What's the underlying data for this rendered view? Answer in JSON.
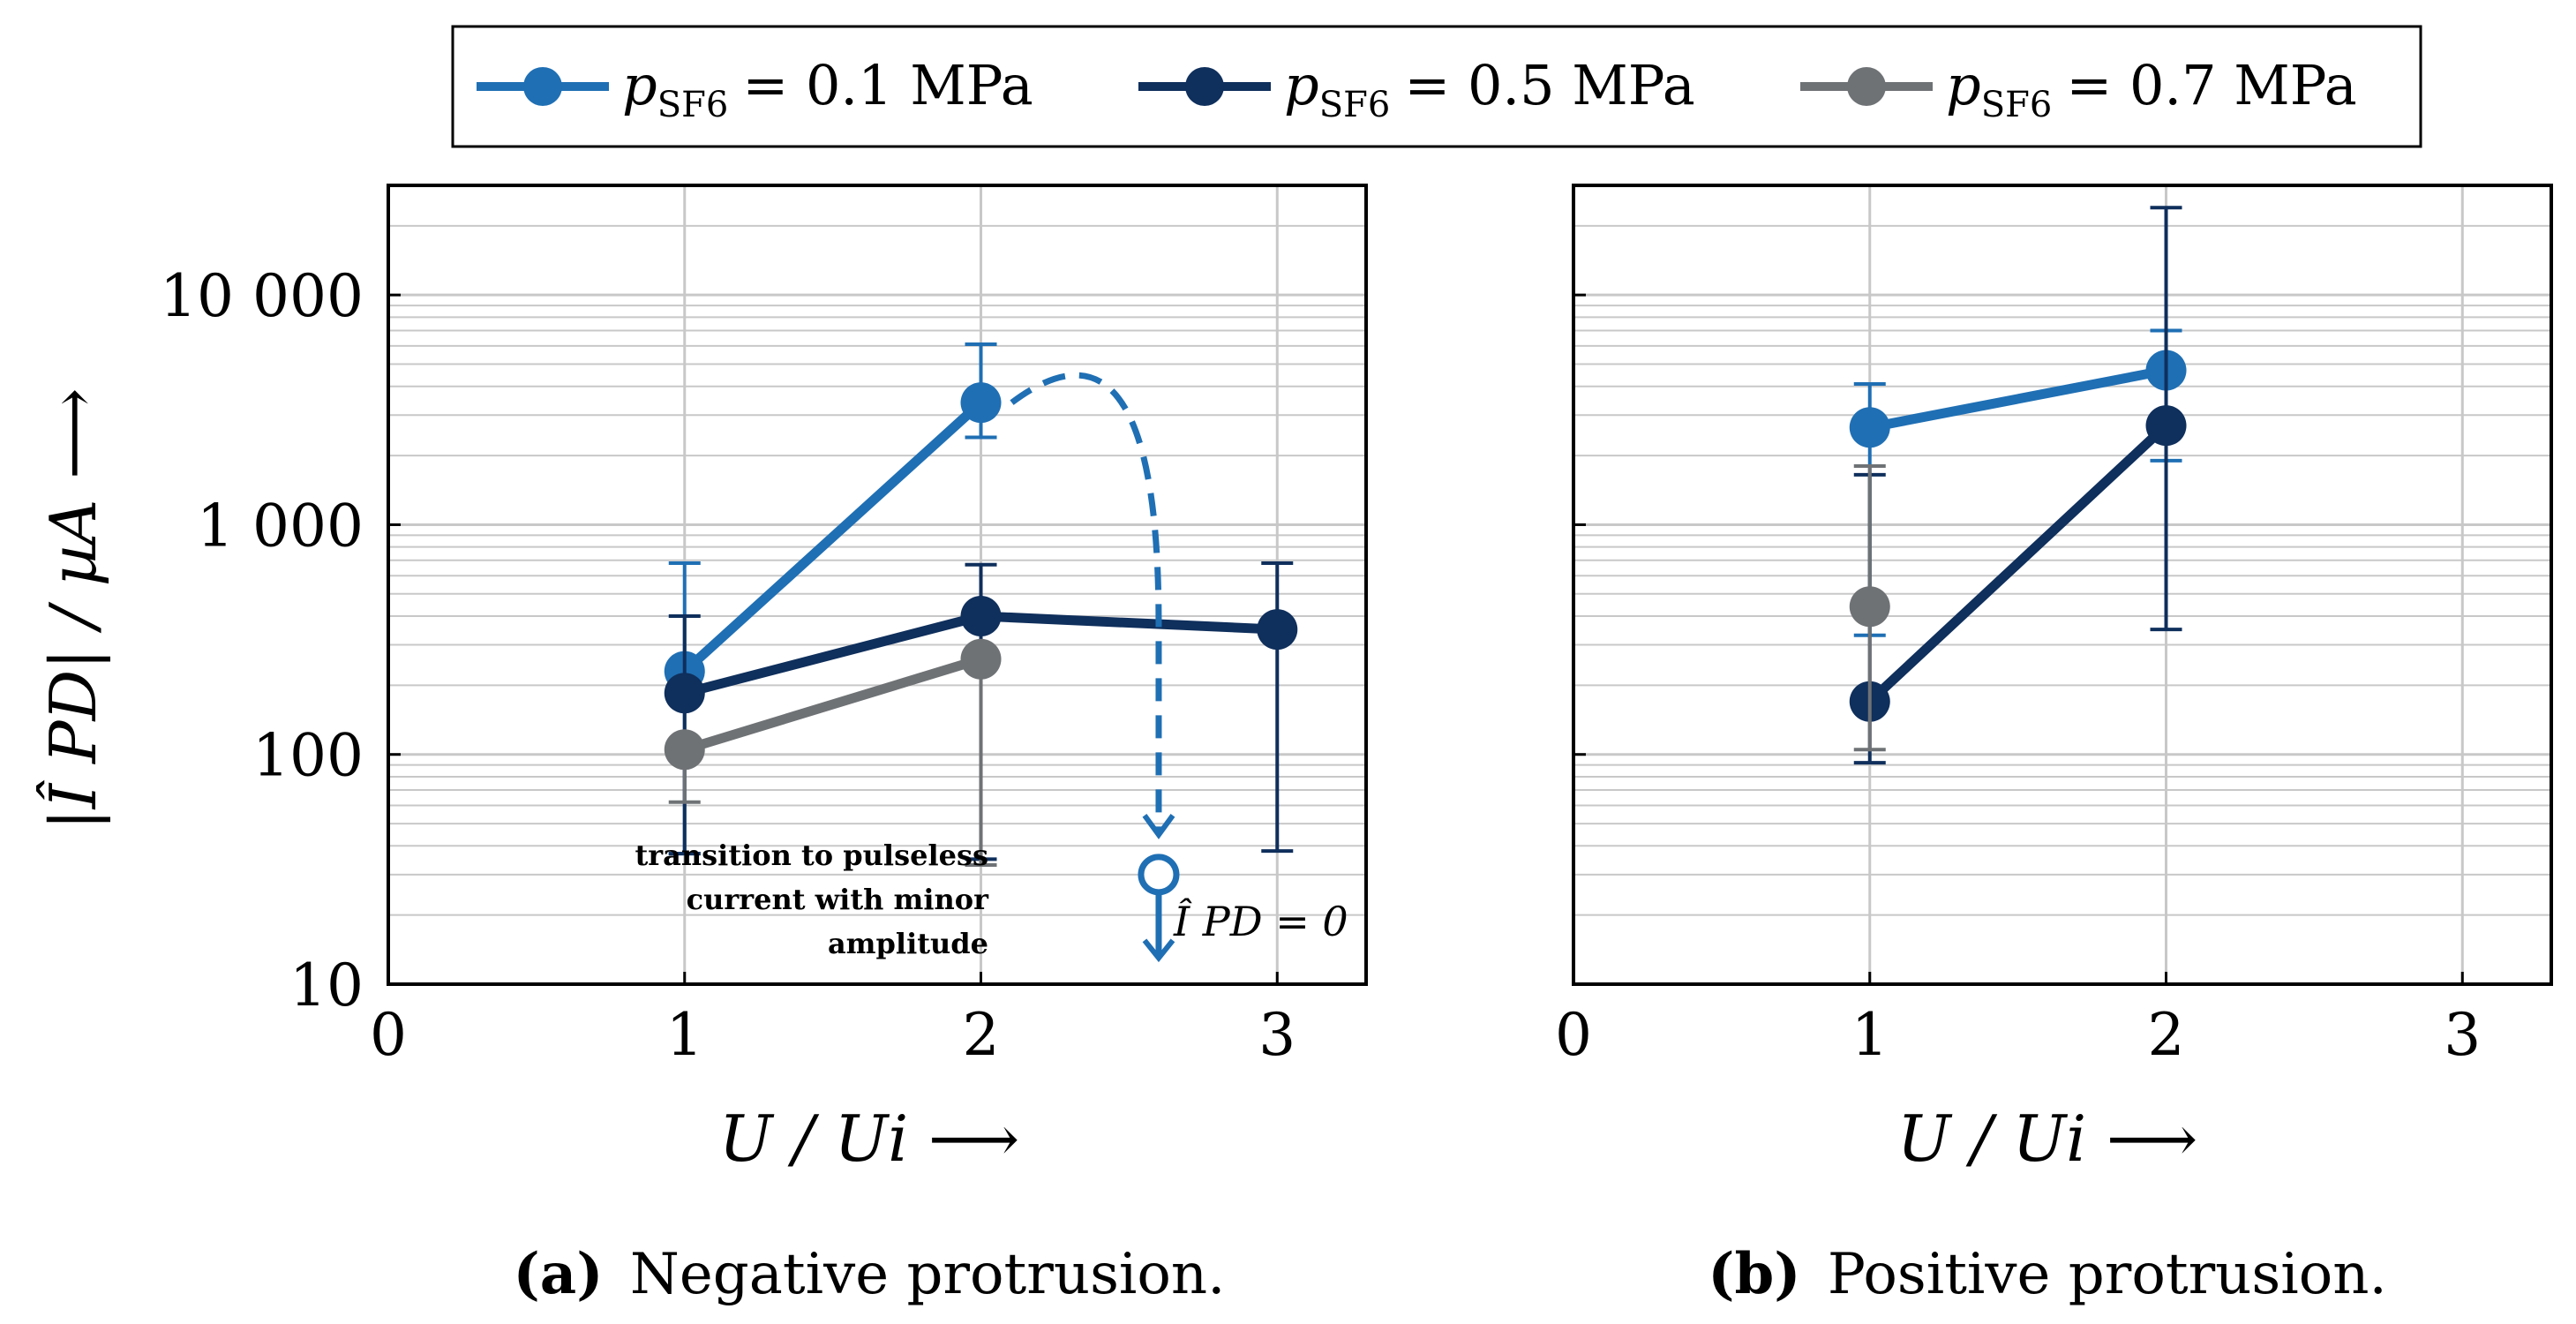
{
  "chart_data": [
    {
      "type": "line",
      "panel": "a",
      "caption_label": "(a)",
      "caption_text": "Negative protrusion.",
      "xlabel": "U / Ui  ⟶",
      "ylabel": "|Î PD| / µA  ⟶",
      "xlim": [
        0,
        3.3
      ],
      "ylim": [
        10,
        30000
      ],
      "yscale": "log",
      "x_ticks": [
        "0",
        "1",
        "2",
        "3"
      ],
      "y_ticks": [
        "10",
        "100",
        "1 000",
        "10 000"
      ],
      "grid": true,
      "series": [
        {
          "name": "pSF6 = 0.1 MPa",
          "color": "#1f6fb4",
          "points": [
            {
              "x": 1,
              "y": 230,
              "lo": 37,
              "hi": 680
            },
            {
              "x": 2,
              "y": 3400,
              "lo": 2400,
              "hi": 6100
            }
          ]
        },
        {
          "name": "pSF6 = 0.5 MPa",
          "color": "#0f2f5c",
          "points": [
            {
              "x": 1,
              "y": 185,
              "lo": 37,
              "hi": 400
            },
            {
              "x": 2,
              "y": 400,
              "lo": 35,
              "hi": 670
            },
            {
              "x": 3,
              "y": 350,
              "lo": 38,
              "hi": 680
            }
          ]
        },
        {
          "name": "pSF6 = 0.7 MPa",
          "color": "#6f7275",
          "points": [
            {
              "x": 1,
              "y": 105,
              "lo": 62,
              "hi": 105
            },
            {
              "x": 2,
              "y": 260,
              "lo": 33,
              "hi": 260
            }
          ]
        }
      ],
      "annotations": {
        "transition_lines": [
          "transition to pulseless",
          "current with minor",
          "amplitude"
        ],
        "zero_label": "Î PD = 0",
        "transition_point": {
          "x": 2.6,
          "y": 30
        }
      }
    },
    {
      "type": "line",
      "panel": "b",
      "caption_label": "(b)",
      "caption_text": "Positive protrusion.",
      "xlabel": "U / Ui  ⟶",
      "xlim": [
        0,
        3.3
      ],
      "ylim": [
        10,
        30000
      ],
      "yscale": "log",
      "x_ticks": [
        "0",
        "1",
        "2",
        "3"
      ],
      "grid": true,
      "series": [
        {
          "name": "pSF6 = 0.1 MPa",
          "color": "#1f6fb4",
          "points": [
            {
              "x": 1,
              "y": 2650,
              "lo": 330,
              "hi": 4100
            },
            {
              "x": 2,
              "y": 4700,
              "lo": 1900,
              "hi": 7000
            }
          ]
        },
        {
          "name": "pSF6 = 0.5 MPa",
          "color": "#0f2f5c",
          "points": [
            {
              "x": 1,
              "y": 170,
              "lo": 92,
              "hi": 1650
            },
            {
              "x": 2,
              "y": 2700,
              "lo": 350,
              "hi": 24000
            }
          ]
        },
        {
          "name": "pSF6 = 0.7 MPa",
          "color": "#6f7275",
          "points": [
            {
              "x": 1,
              "y": 440,
              "lo": 105,
              "hi": 1800
            }
          ]
        }
      ]
    }
  ],
  "legend": {
    "entries": [
      {
        "symbol": "p",
        "subscript": "SF6",
        "rest": "= 0.1 MPa",
        "color": "#1f6fb4"
      },
      {
        "symbol": "p",
        "subscript": "SF6",
        "rest": "= 0.5 MPa",
        "color": "#0f2f5c"
      },
      {
        "symbol": "p",
        "subscript": "SF6",
        "rest": "= 0.7 MPa",
        "color": "#6f7275"
      }
    ]
  },
  "colors": {
    "annotation": "#1f6fb4",
    "grid": "#c8c8c8"
  }
}
